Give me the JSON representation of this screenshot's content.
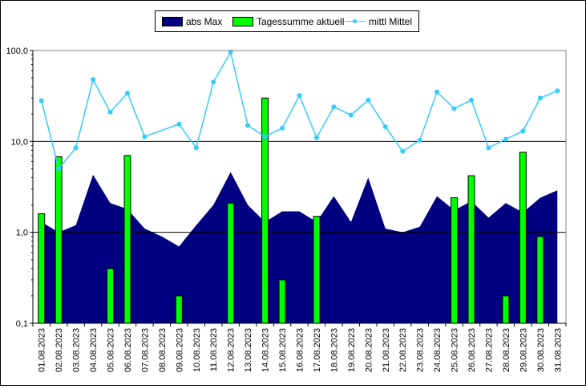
{
  "chart_data": {
    "type": "bar",
    "yscale": "log",
    "ylim": [
      0.1,
      100
    ],
    "yticks": [
      "0,1",
      "1,0",
      "10,0",
      "100,0"
    ],
    "grid": "horizontal major lines",
    "legend": "top-center",
    "categories": [
      "01.08.2023",
      "02.08.2023",
      "03.08.2023",
      "04.08.2023",
      "05.08.2023",
      "06.08.2023",
      "07.08.2023",
      "08.08.2023",
      "09.08.2023",
      "10.08.2023",
      "11.08.2023",
      "12.08.2023",
      "13.08.2023",
      "14.08.2023",
      "15.08.2023",
      "16.08.2023",
      "17.08.2023",
      "18.08.2023",
      "19.08.2023",
      "20.08.2023",
      "21.08.2023",
      "22.08.2023",
      "23.08.2023",
      "24.08.2023",
      "25.08.2023",
      "26.08.2023",
      "27.08.2023",
      "28.08.2023",
      "29.08.2023",
      "30.08.2023",
      "31.08.2023"
    ],
    "series": [
      {
        "name": "abs Max",
        "type": "area",
        "color": "#000080",
        "values": [
          1.3,
          1.0,
          1.2,
          4.3,
          2.1,
          1.8,
          1.1,
          0.9,
          0.7,
          1.2,
          2.0,
          4.6,
          2.0,
          1.3,
          1.7,
          1.7,
          1.3,
          2.5,
          1.3,
          4.0,
          1.1,
          1.0,
          1.15,
          2.5,
          1.75,
          2.2,
          1.45,
          2.1,
          1.65,
          2.4,
          2.9
        ]
      },
      {
        "name": "Tagessumme aktuell",
        "type": "bar",
        "color": "#00FF00",
        "values": [
          1.6,
          6.8,
          null,
          null,
          0.4,
          7.0,
          null,
          null,
          0.2,
          null,
          null,
          2.1,
          null,
          30.0,
          0.3,
          null,
          1.5,
          null,
          null,
          null,
          null,
          null,
          null,
          null,
          2.4,
          4.2,
          null,
          0.2,
          7.6,
          0.9,
          null
        ]
      },
      {
        "name": "mittl Mittel",
        "type": "line",
        "color": "#33CCFF",
        "values": [
          28,
          5,
          8.5,
          48,
          21,
          34,
          11.3,
          null,
          15.5,
          8.5,
          45,
          96,
          15,
          11.3,
          14,
          32,
          11,
          24,
          19.5,
          28.5,
          14.5,
          7.8,
          10.3,
          35,
          23,
          28.5,
          8.5,
          10.6,
          13,
          30,
          36
        ]
      }
    ]
  }
}
